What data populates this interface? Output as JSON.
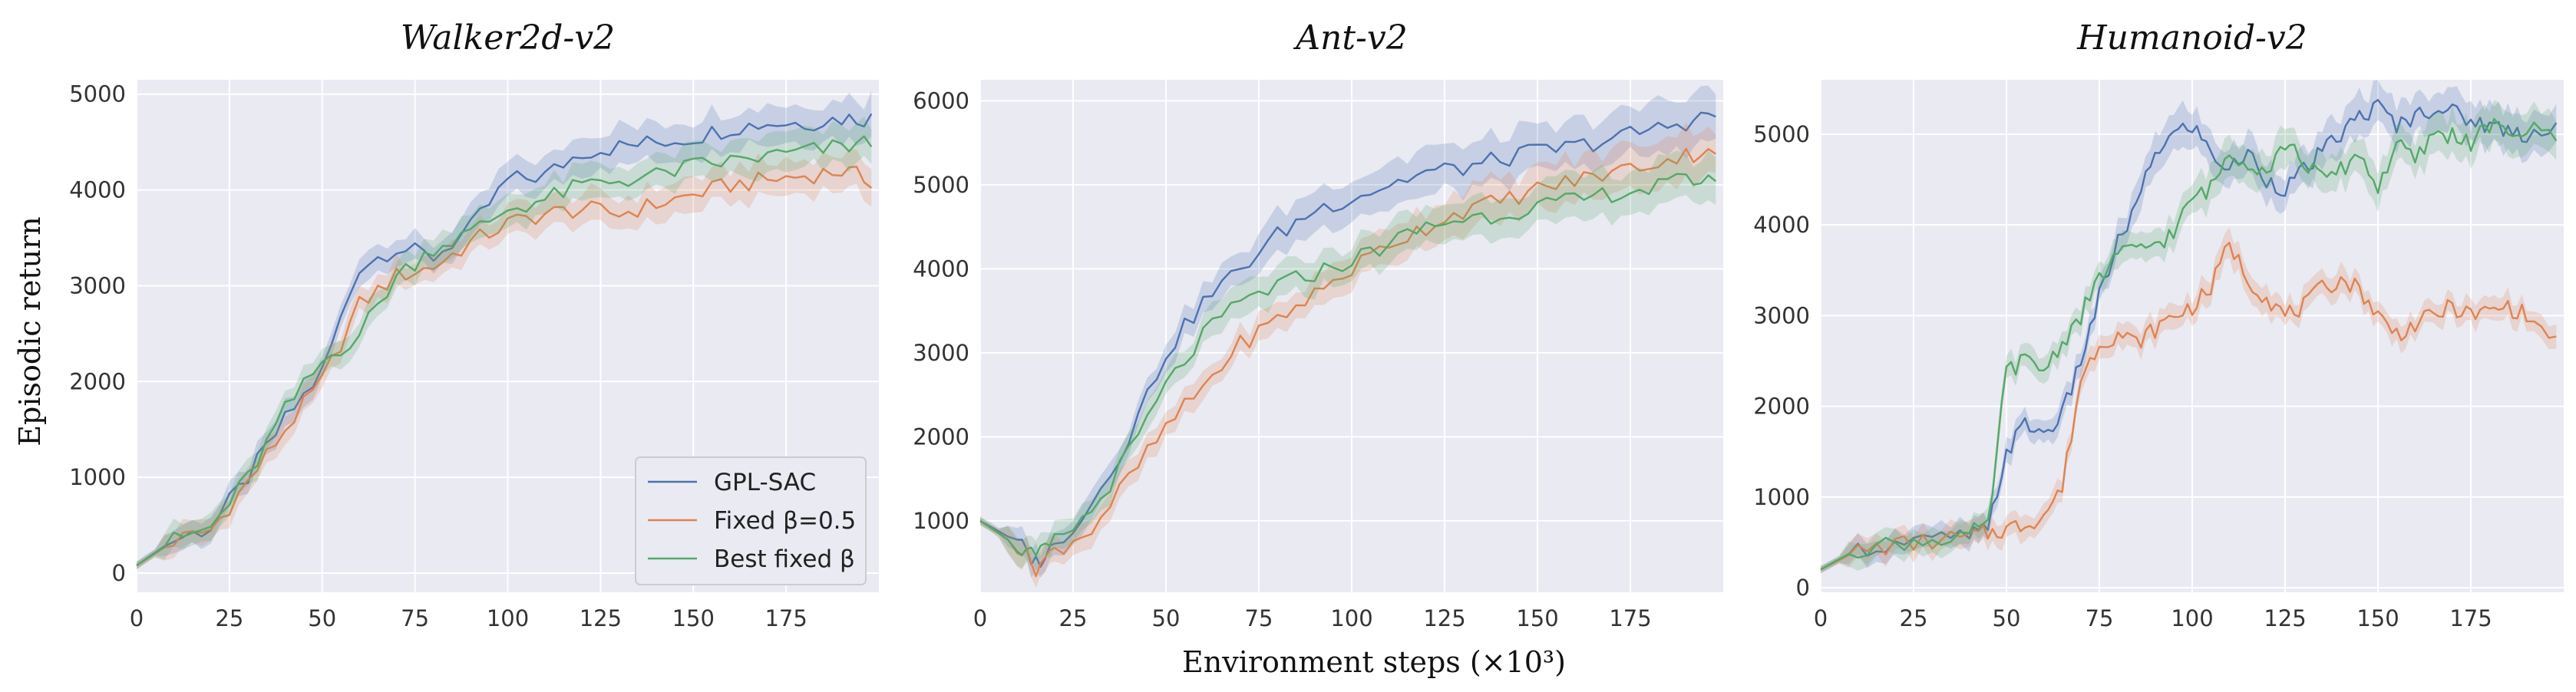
{
  "figure": {
    "xlabel": "Environment steps (×10³)",
    "ylabel": "Episodic return"
  },
  "legend": {
    "placement": "lower-right",
    "items": [
      "GPL-SAC",
      "Fixed β=0.5",
      "Best fixed β"
    ]
  },
  "colors": {
    "gpl": "#4c72b0",
    "fixed": "#dd8452",
    "best": "#55a868",
    "panel_bg": "#eaeaf2",
    "grid": "#ffffff"
  },
  "chart_data": [
    {
      "type": "line",
      "title": "Walker2d-v2",
      "xlim": [
        0,
        200
      ],
      "ylim": [
        -200,
        5150
      ],
      "xticks": [
        "0",
        "25",
        "50",
        "75",
        "100",
        "125",
        "150",
        "175"
      ],
      "yticks": [
        "0",
        "1000",
        "2000",
        "3000",
        "4000",
        "5000"
      ],
      "grid": true,
      "x": [
        0,
        10,
        20,
        30,
        40,
        50,
        60,
        70,
        80,
        90,
        100,
        110,
        120,
        130,
        140,
        150,
        160,
        170,
        180,
        190,
        198
      ],
      "series": [
        {
          "name": "GPL-SAC",
          "values": [
            80,
            350,
            480,
            1000,
            1600,
            2100,
            3200,
            3400,
            3300,
            3600,
            4100,
            4150,
            4400,
            4450,
            4500,
            4550,
            4650,
            4700,
            4700,
            4750,
            4750
          ]
        },
        {
          "name": "Fixed β=0.5",
          "values": [
            80,
            330,
            450,
            950,
            1500,
            2000,
            2800,
            3100,
            3200,
            3450,
            3650,
            3750,
            3800,
            3750,
            3850,
            3950,
            4050,
            4100,
            4150,
            4200,
            4100
          ]
        },
        {
          "name": "Best fixed β",
          "values": [
            80,
            340,
            470,
            1000,
            1700,
            2200,
            2500,
            3100,
            3400,
            3550,
            3800,
            3900,
            4050,
            4100,
            4150,
            4250,
            4300,
            4350,
            4400,
            4450,
            4500
          ]
        }
      ]
    },
    {
      "type": "line",
      "title": "Ant-v2",
      "xlim": [
        0,
        200
      ],
      "ylim": [
        150,
        6250
      ],
      "xticks": [
        "0",
        "25",
        "50",
        "75",
        "100",
        "125",
        "150",
        "175"
      ],
      "yticks": [
        "1000",
        "2000",
        "3000",
        "4000",
        "5000",
        "6000"
      ],
      "grid": true,
      "x": [
        0,
        10,
        15,
        20,
        30,
        40,
        50,
        60,
        70,
        80,
        90,
        100,
        110,
        120,
        130,
        140,
        150,
        160,
        170,
        180,
        190,
        198
      ],
      "series": [
        {
          "name": "GPL-SAC",
          "values": [
            1000,
            750,
            500,
            700,
            1200,
            2000,
            3000,
            3600,
            4000,
            4400,
            4700,
            4850,
            5000,
            5150,
            5200,
            5300,
            5400,
            5450,
            5550,
            5650,
            5750,
            5850
          ]
        },
        {
          "name": "Fixed β=0.5",
          "values": [
            1000,
            700,
            450,
            650,
            900,
            1500,
            2100,
            2600,
            3100,
            3400,
            3700,
            4000,
            4300,
            4500,
            4700,
            4800,
            4950,
            5050,
            5150,
            5250,
            5350,
            5450
          ]
        },
        {
          "name": "Best fixed β",
          "values": [
            1000,
            700,
            550,
            750,
            1100,
            1800,
            2600,
            3200,
            3600,
            3800,
            3950,
            4100,
            4300,
            4500,
            4600,
            4650,
            4750,
            4800,
            4900,
            4950,
            5050,
            5100
          ]
        }
      ]
    },
    {
      "type": "line",
      "title": "Humanoid-v2",
      "xlim": [
        0,
        200
      ],
      "ylim": [
        -50,
        5600
      ],
      "xticks": [
        "0",
        "25",
        "50",
        "75",
        "100",
        "125",
        "150",
        "175"
      ],
      "yticks": [
        "0",
        "1000",
        "2000",
        "3000",
        "4000",
        "5000"
      ],
      "grid": true,
      "x": [
        0,
        10,
        20,
        30,
        40,
        45,
        50,
        55,
        60,
        65,
        70,
        75,
        80,
        85,
        90,
        95,
        100,
        105,
        110,
        115,
        120,
        125,
        130,
        135,
        140,
        145,
        150,
        155,
        160,
        165,
        170,
        175,
        180,
        185,
        190,
        198
      ],
      "series": [
        {
          "name": "GPL-SAC",
          "values": [
            200,
            420,
            480,
            520,
            580,
            620,
            1500,
            1800,
            1700,
            1900,
            2500,
            3200,
            3800,
            4200,
            4800,
            5000,
            5100,
            4800,
            4600,
            4800,
            4500,
            4400,
            4600,
            4800,
            5000,
            5200,
            5300,
            5100,
            5200,
            5300,
            5250,
            5150,
            5100,
            5050,
            5000,
            5100
          ]
        },
        {
          "name": "Fixed β=0.5",
          "values": [
            200,
            410,
            470,
            510,
            560,
            600,
            650,
            700,
            800,
            1100,
            2300,
            2700,
            2800,
            2700,
            2850,
            3000,
            3100,
            3300,
            3800,
            3400,
            3200,
            3000,
            3100,
            3300,
            3400,
            3300,
            3000,
            2800,
            2900,
            3000,
            3100,
            3000,
            3050,
            3100,
            3000,
            2700
          ]
        },
        {
          "name": "Best fixed β",
          "values": [
            200,
            430,
            490,
            530,
            600,
            650,
            2400,
            2500,
            2400,
            2700,
            3000,
            3400,
            3700,
            3700,
            3800,
            3900,
            4300,
            4400,
            4800,
            4700,
            4600,
            4900,
            4700,
            4500,
            4600,
            4800,
            4400,
            4900,
            4700,
            5000,
            5000,
            4900,
            5100,
            5000,
            5050,
            5000
          ]
        }
      ]
    }
  ]
}
